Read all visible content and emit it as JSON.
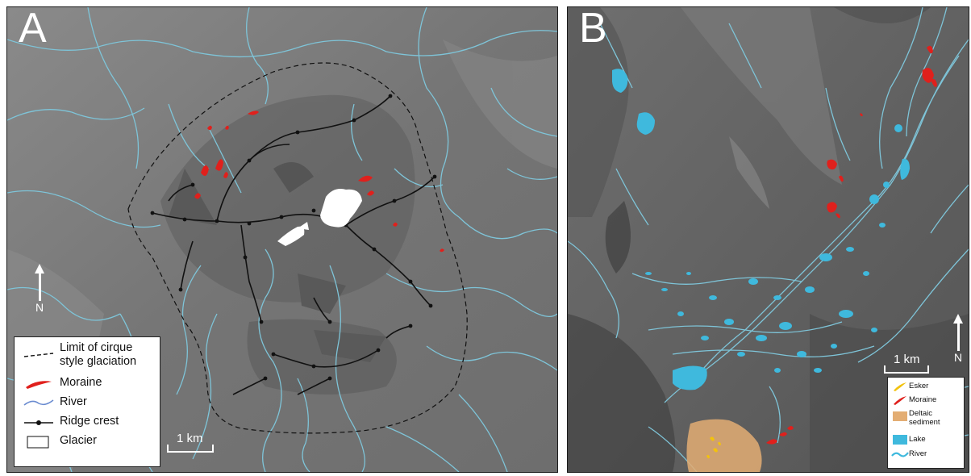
{
  "panels": {
    "a": {
      "letter": "A",
      "north_label": "N",
      "scale_label": "1 km",
      "legend": {
        "limit": "Limit of cirque style glaciation",
        "moraine": "Moraine",
        "river": "River",
        "ridge": "Ridge crest",
        "glacier": "Glacier"
      }
    },
    "b": {
      "letter": "B",
      "north_label": "N",
      "scale_label": "1 km",
      "legend": {
        "esker": "Esker",
        "moraine": "Moraine",
        "deltaic": "Deltaic sediment",
        "lake": "Lake",
        "river": "River"
      }
    }
  },
  "colors": {
    "river": "#7ec4d8",
    "moraine": "#e0201c",
    "lake": "#3fb9dd",
    "esker": "#f2c20d",
    "deltaic": "#e3ad73",
    "glacier": "#ffffff",
    "ridge": "#111111",
    "terrain": "#7b7b7b"
  }
}
